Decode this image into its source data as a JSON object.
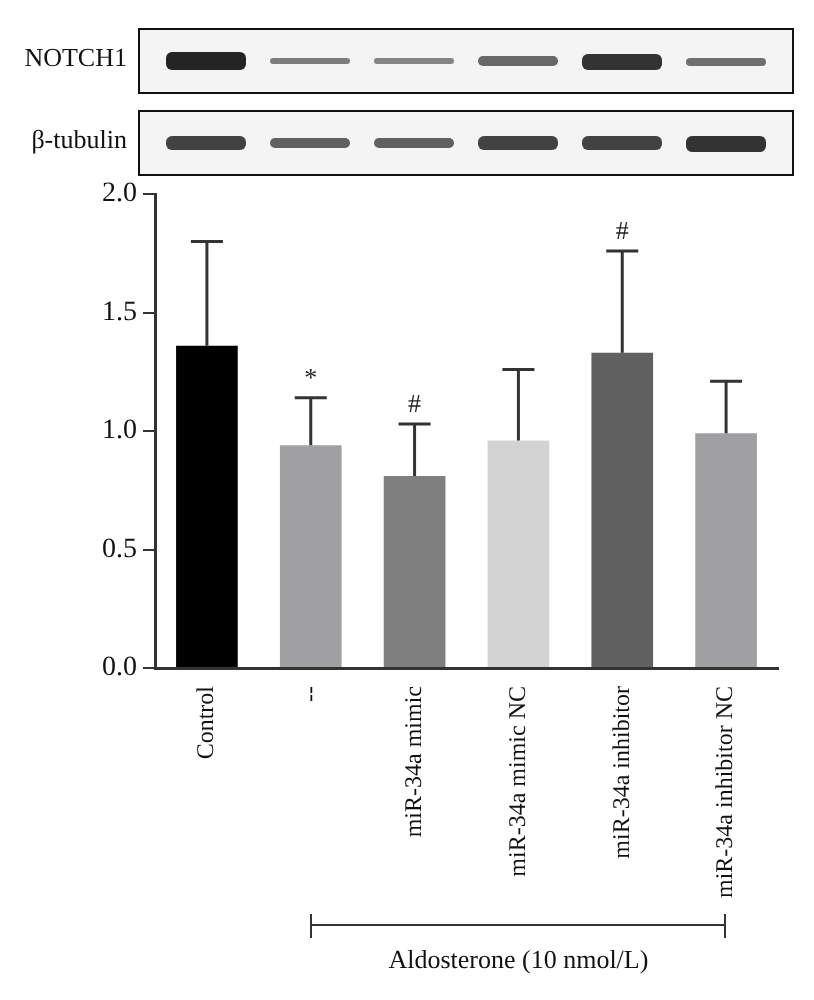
{
  "chart_data": {
    "type": "bar",
    "categories": [
      "Control",
      "--",
      "miR-34a mimic",
      "miR-34a mimic NC",
      "miR-34a inhibitor",
      "miR-34a inhibitor NC"
    ],
    "values": [
      1.36,
      0.94,
      0.81,
      0.96,
      1.33,
      0.99
    ],
    "colors": [
      "#000000",
      "#a0a0a2",
      "#7f7f7f",
      "#d3d3d3",
      "#616161",
      "#a0a0a2"
    ],
    "errors": [
      [
        1.36,
        1.8
      ],
      [
        0.94,
        1.14
      ],
      [
        0.81,
        1.03
      ],
      [
        0.96,
        1.26
      ],
      [
        1.33,
        1.76
      ],
      [
        0.99,
        1.21
      ]
    ],
    "ylim": [
      0,
      2
    ],
    "yticks": [
      {
        "value": 0,
        "label": "0.0"
      },
      {
        "value": 0.5,
        "label": "0.5"
      },
      {
        "value": 1,
        "label": "1.0"
      },
      {
        "value": 1.5,
        "label": "1.5"
      },
      {
        "value": 2,
        "label": "2.0"
      }
    ],
    "grid": false,
    "legend": false,
    "annotations": [
      "NOTCH1",
      "β-tubulin",
      {
        "text": "*",
        "x": "--",
        "y": 1.14
      },
      {
        "text": "#",
        "x": "miR-34a mimic",
        "y": 1.03
      },
      {
        "text": "#",
        "x": "miR-34a inhibitor",
        "y": 1.76
      },
      "Aldosterone (10 nmol/L)"
    ]
  }
}
